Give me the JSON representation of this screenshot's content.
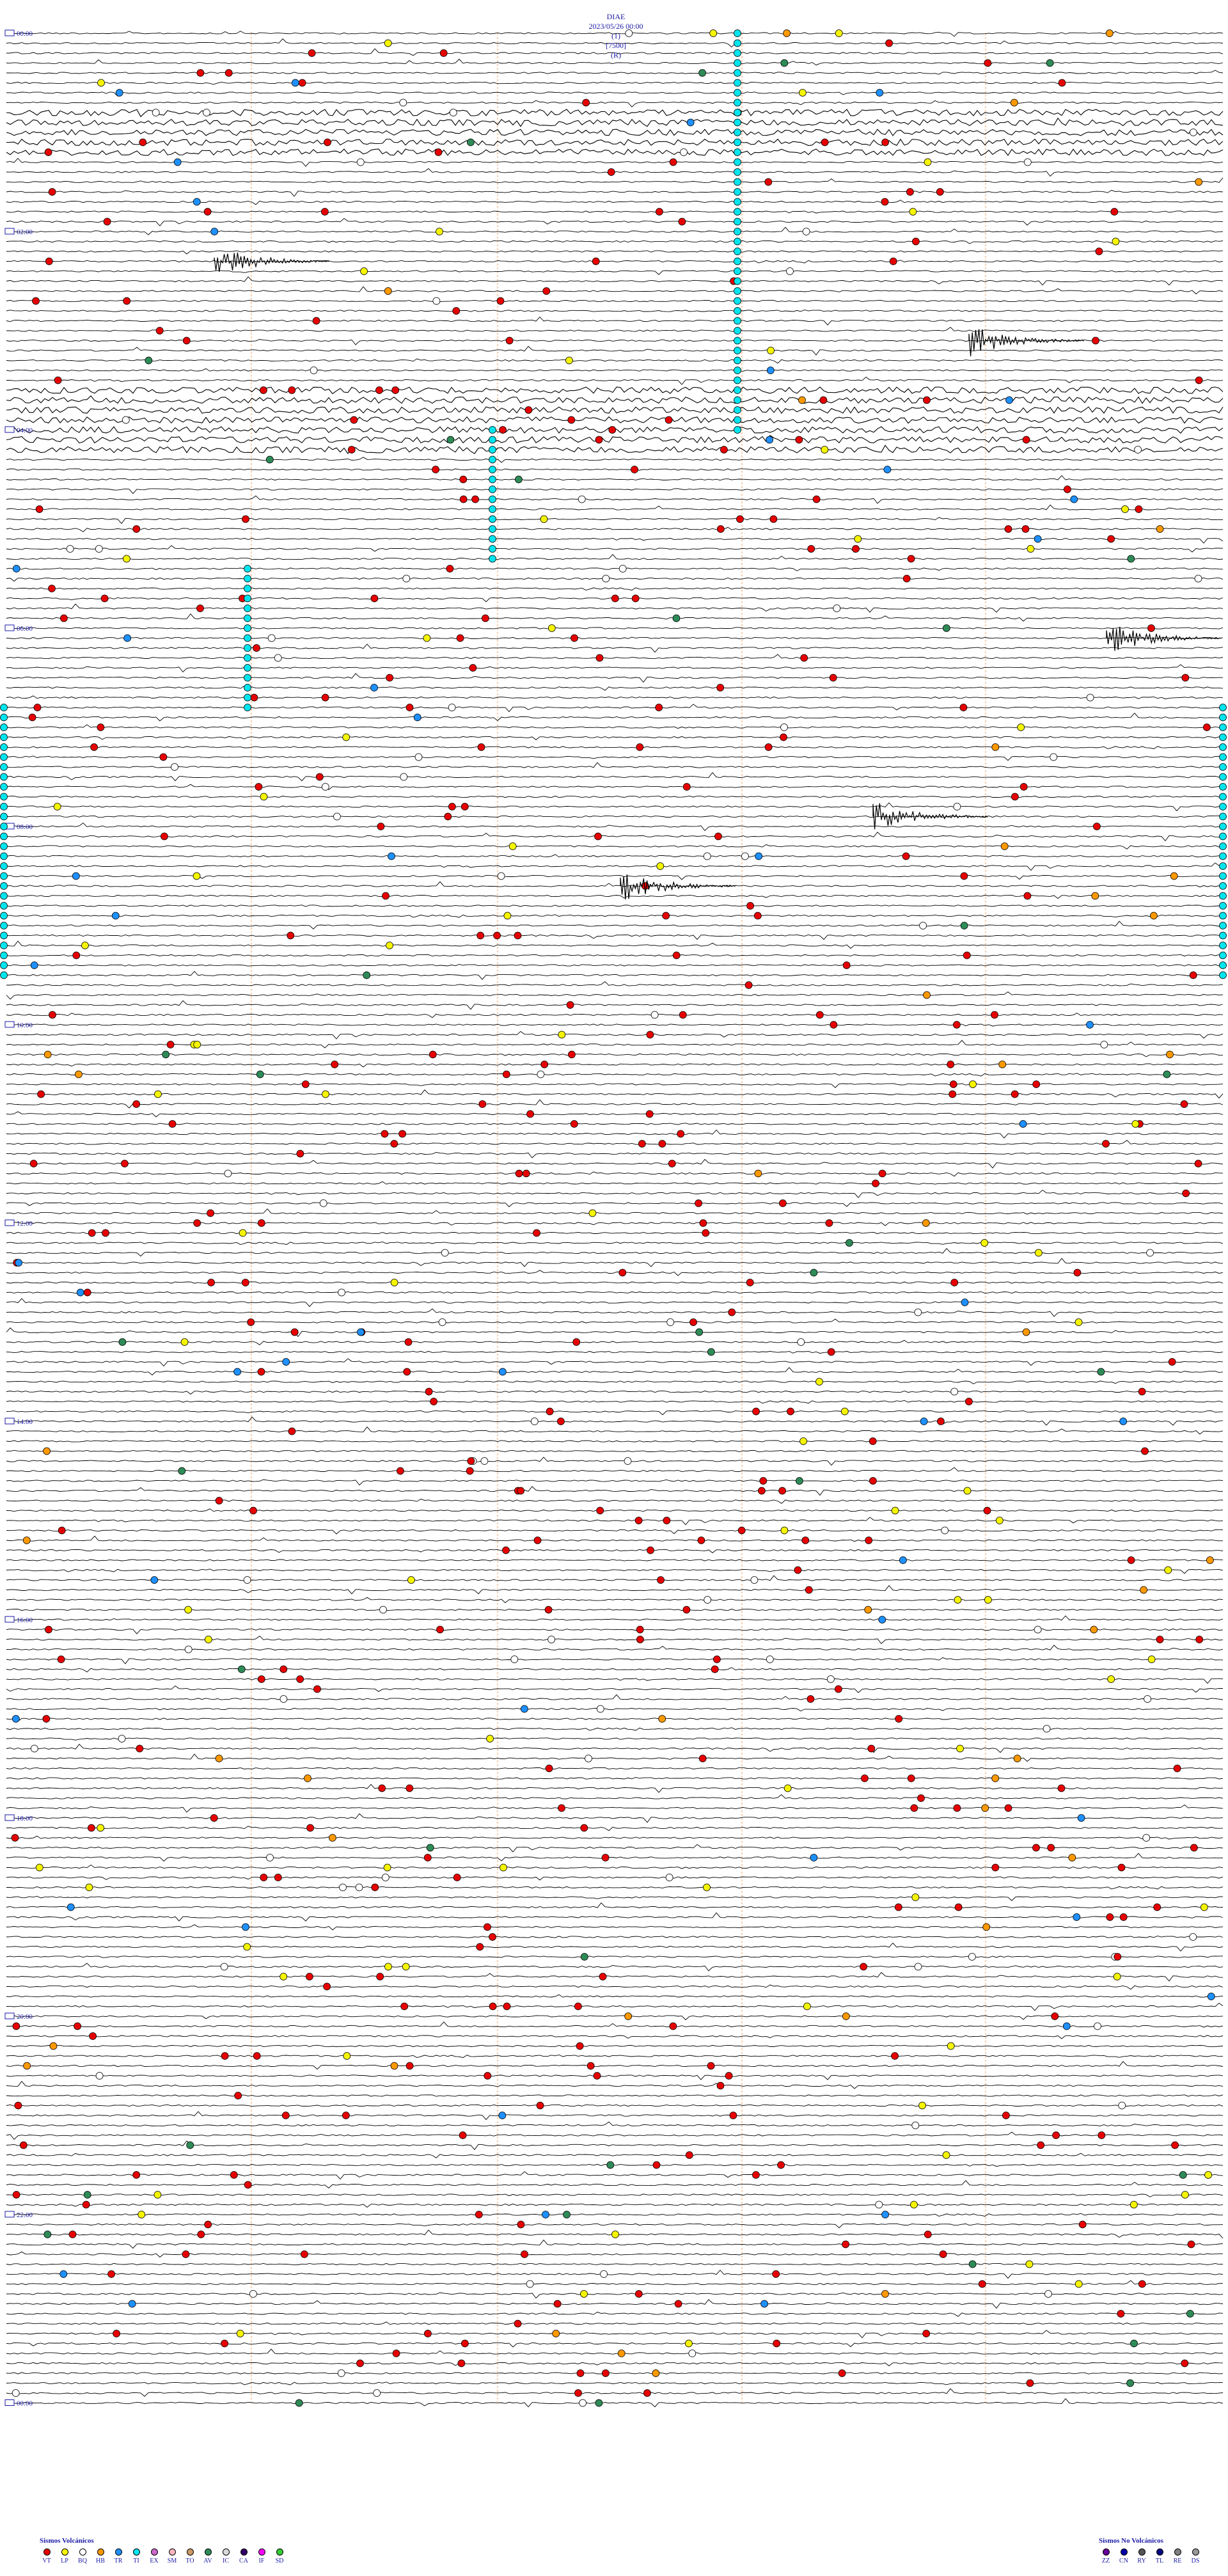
{
  "header": {
    "station": "DIAE",
    "datetime": "2023/05/26 00:00",
    "channel": "(1)",
    "scale": "[7500]",
    "mode": "(R)"
  },
  "chart_data": {
    "type": "heatmap",
    "title": "DIAE 2023/05/26 00:00",
    "y_axis_labels": [
      "00:00",
      "02:00",
      "04:00",
      "06:00",
      "08:00",
      "10:00",
      "12:00",
      "14:00",
      "16:00",
      "18:00",
      "20:00",
      "22:00",
      "00:00"
    ],
    "traces_total": 240,
    "minutes_per_trace": 6,
    "colors": {
      "VT": "#e60000",
      "LP": "#f5f500",
      "BQ": "#ffffff",
      "HB": "#ff9900",
      "TR": "#1e90ff",
      "TI": "#00e5ee",
      "EX": "#cc66cc",
      "SM": "#ffb6c1",
      "TO": "#cc9966",
      "AV": "#2e8b57",
      "IC": "#d9d9d9",
      "CA": "#330066",
      "IF": "#ff00ff",
      "SD": "#33cc33",
      "ZZ": "#660099",
      "CN": "#0000aa",
      "RY": "#555555",
      "TL": "#000080",
      "RE": "#808080",
      "DS": "#999999"
    }
  },
  "legend_volcanic": {
    "title": "Sismos Volcánicos",
    "items": [
      {
        "code": "VT",
        "color": "#e60000"
      },
      {
        "code": "LP",
        "color": "#f5f500"
      },
      {
        "code": "BQ",
        "color": "#ffffff"
      },
      {
        "code": "HB",
        "color": "#ff9900"
      },
      {
        "code": "TR",
        "color": "#1e90ff"
      },
      {
        "code": "TI",
        "color": "#00e5ee"
      },
      {
        "code": "EX",
        "color": "#cc66cc"
      },
      {
        "code": "SM",
        "color": "#ffb6c1"
      },
      {
        "code": "TO",
        "color": "#cc9966"
      },
      {
        "code": "AV",
        "color": "#2e8b57"
      },
      {
        "code": "IC",
        "color": "#d9d9d9"
      },
      {
        "code": "CA",
        "color": "#330066"
      },
      {
        "code": "IF",
        "color": "#ff00ff"
      },
      {
        "code": "SD",
        "color": "#33cc33"
      }
    ]
  },
  "legend_nonvolcanic": {
    "title": "Sismos No Volcánicos",
    "items": [
      {
        "code": "ZZ",
        "color": "#660099"
      },
      {
        "code": "CN",
        "color": "#0000aa"
      },
      {
        "code": "RY",
        "color": "#555555"
      },
      {
        "code": "TL",
        "color": "#000080"
      },
      {
        "code": "RE",
        "color": "#808080"
      },
      {
        "code": "DS",
        "color": "#999999"
      }
    ]
  }
}
